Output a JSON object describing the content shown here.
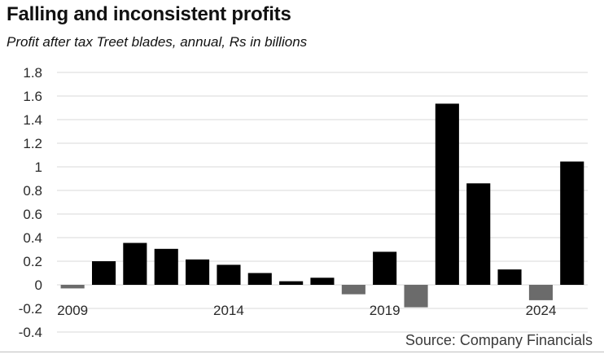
{
  "chart_data": {
    "type": "bar",
    "title": "Falling and inconsistent profits",
    "subtitle": "Profit after tax Treet blades, annual, Rs in billions",
    "source": "Source: Company Financials",
    "xlabel": "",
    "ylabel": "",
    "ylim": [
      -0.4,
      1.8
    ],
    "yticks": [
      "1.8",
      "1.6",
      "1.4",
      "1.2",
      "1",
      "0.8",
      "0.6",
      "0.4",
      "0.2",
      "0",
      "-0.2",
      "-0.4"
    ],
    "grid": true,
    "categories": [
      "2009",
      "2010",
      "2011",
      "2012",
      "2013",
      "2014",
      "2015",
      "2016",
      "2017",
      "2018",
      "2019",
      "2020",
      "2021",
      "2022",
      "2023",
      "2024",
      "2025"
    ],
    "x_tick_labels": [
      "2009",
      "2014",
      "2019",
      "2024"
    ],
    "values": [
      -0.03,
      0.2,
      0.355,
      0.305,
      0.215,
      0.17,
      0.1,
      0.03,
      0.06,
      -0.08,
      0.28,
      -0.19,
      1.535,
      0.86,
      0.13,
      -0.13,
      1.045
    ],
    "colors": {
      "positive": "#000000",
      "negative": "#6b6b6b",
      "grid": "#d9d9d9"
    }
  }
}
